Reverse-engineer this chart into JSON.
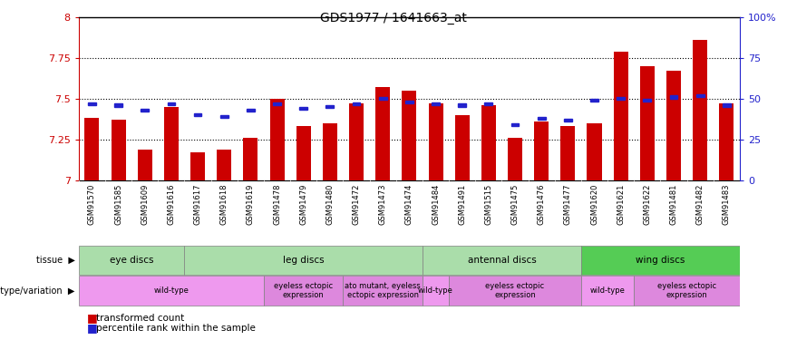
{
  "title": "GDS1977 / 1641663_at",
  "samples": [
    "GSM91570",
    "GSM91585",
    "GSM91609",
    "GSM91616",
    "GSM91617",
    "GSM91618",
    "GSM91619",
    "GSM91478",
    "GSM91479",
    "GSM91480",
    "GSM91472",
    "GSM91473",
    "GSM91474",
    "GSM91484",
    "GSM91491",
    "GSM91515",
    "GSM91475",
    "GSM91476",
    "GSM91477",
    "GSM91620",
    "GSM91621",
    "GSM91622",
    "GSM91481",
    "GSM91482",
    "GSM91483"
  ],
  "transformed_count": [
    7.38,
    7.37,
    7.19,
    7.45,
    7.17,
    7.19,
    7.26,
    7.5,
    7.33,
    7.35,
    7.47,
    7.57,
    7.55,
    7.47,
    7.4,
    7.46,
    7.26,
    7.36,
    7.33,
    7.35,
    7.79,
    7.7,
    7.67,
    7.86,
    7.47
  ],
  "percentile_rank": [
    47,
    46,
    43,
    47,
    40,
    39,
    43,
    47,
    44,
    45,
    47,
    50,
    48,
    47,
    46,
    47,
    34,
    38,
    37,
    49,
    50,
    49,
    51,
    52,
    46
  ],
  "bar_color": "#cc0000",
  "square_color": "#2222cc",
  "y_min": 7.0,
  "y_max": 8.0,
  "y_ticks": [
    7.0,
    7.25,
    7.5,
    7.75,
    8.0
  ],
  "y_tick_labels": [
    "7",
    "7.25",
    "7.5",
    "7.75",
    "8"
  ],
  "right_y_ticks": [
    0,
    25,
    50,
    75,
    100
  ],
  "right_y_tick_labels": [
    "0",
    "25",
    "50",
    "75",
    "100%"
  ],
  "tissue_groups": [
    {
      "label": "eye discs",
      "start": 0,
      "end": 3,
      "color": "#aaddaa"
    },
    {
      "label": "leg discs",
      "start": 4,
      "end": 12,
      "color": "#aaddaa"
    },
    {
      "label": "antennal discs",
      "start": 13,
      "end": 18,
      "color": "#aaddaa"
    },
    {
      "label": "wing discs",
      "start": 19,
      "end": 24,
      "color": "#55cc55"
    }
  ],
  "genotype_groups": [
    {
      "label": "wild-type",
      "start": 0,
      "end": 6,
      "color": "#ee99ee"
    },
    {
      "label": "eyeless ectopic\nexpression",
      "start": 7,
      "end": 9,
      "color": "#dd88dd"
    },
    {
      "label": "ato mutant, eyeless\nectopic expression",
      "start": 10,
      "end": 12,
      "color": "#dd88dd"
    },
    {
      "label": "wild-type",
      "start": 13,
      "end": 13,
      "color": "#ee99ee"
    },
    {
      "label": "eyeless ectopic\nexpression",
      "start": 14,
      "end": 18,
      "color": "#dd88dd"
    },
    {
      "label": "wild-type",
      "start": 19,
      "end": 20,
      "color": "#ee99ee"
    },
    {
      "label": "eyeless ectopic\nexpression",
      "start": 21,
      "end": 24,
      "color": "#dd88dd"
    }
  ],
  "background_color": "#ffffff",
  "tick_color": "#cc0000",
  "right_tick_color": "#2222cc",
  "xtick_bg_color": "#cccccc"
}
